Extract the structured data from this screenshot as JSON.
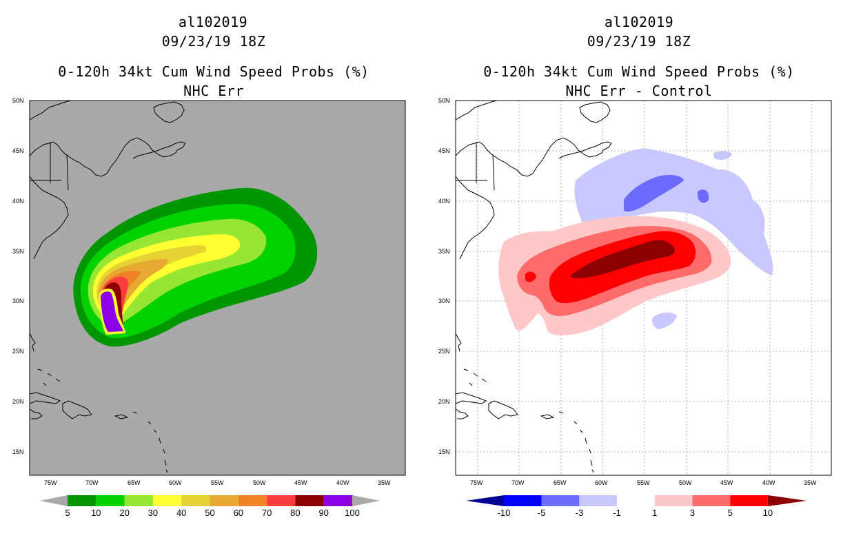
{
  "left_panel": {
    "storm_id": "al102019",
    "datetime": "09/23/19 18Z",
    "title": "0-120h 34kt Cum Wind Speed Probs (%)",
    "subtitle": "NHC Err",
    "background_color": "#a9a9a9",
    "lat_labels": [
      "50N",
      "45N",
      "40N",
      "35N",
      "30N",
      "25N",
      "20N",
      "15N"
    ],
    "lon_labels": [
      "75W",
      "70W",
      "65W",
      "60W",
      "55W",
      "50W",
      "45W",
      "40W",
      "35W"
    ],
    "colorbar": {
      "labels": [
        "5",
        "10",
        "20",
        "30",
        "40",
        "50",
        "60",
        "70",
        "80",
        "90",
        "100"
      ],
      "colors": [
        "#009600",
        "#00d200",
        "#96e632",
        "#ffff32",
        "#e6d232",
        "#e6aa32",
        "#f08228",
        "#fa3c3c",
        "#8c0000",
        "#8c00e6"
      ],
      "end_color": "#a9a9a9"
    }
  },
  "right_panel": {
    "storm_id": "al102019",
    "datetime": "09/23/19 18Z",
    "title": "0-120h 34kt Cum Wind Speed Probs (%)",
    "subtitle": "NHC Err - Control",
    "background_color": "#ffffff",
    "lat_labels": [
      "50N",
      "45N",
      "40N",
      "35N",
      "30N",
      "25N",
      "20N",
      "15N"
    ],
    "lon_labels": [
      "75W",
      "70W",
      "65W",
      "60W",
      "55W",
      "50W",
      "45W",
      "40W",
      "35W"
    ],
    "colorbar": {
      "labels": [
        "-10",
        "-5",
        "-3",
        "-1",
        "1",
        "3",
        "5",
        "10"
      ],
      "colors": [
        "#0000ff",
        "#6b6bff",
        "#c8c8ff",
        "#ffffff",
        "#ffc8c8",
        "#ff6b6b",
        "#ff0000"
      ],
      "end_low_color": "#000096",
      "end_high_color": "#8c0000"
    }
  }
}
